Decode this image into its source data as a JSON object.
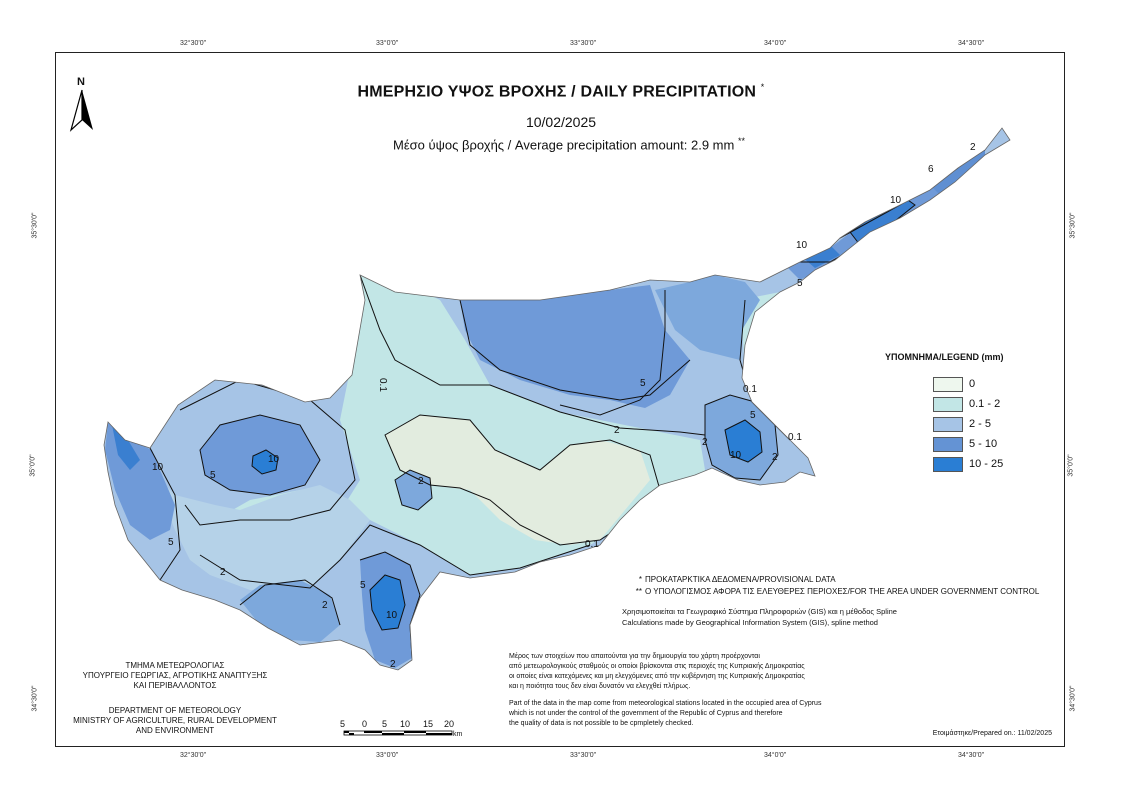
{
  "title": "ΗΜΕΡΗΣΙΟ ΥΨΟΣ ΒΡΟΧΗΣ / DAILY PRECIPITATION",
  "title_mark": "*",
  "date": "10/02/2025",
  "average_text": "Μέσο ύψος βροχής / Average precipitation amount: 2.9 mm",
  "average_mark": "**",
  "north_label": "N",
  "longitude_ticks": [
    "32°30'0\"",
    "33°0'0\"",
    "33°30'0\"",
    "34°0'0\"",
    "34°30'0\""
  ],
  "latitude_ticks": [
    "35°30'0\"",
    "35°0'0\"",
    "34°30'0\""
  ],
  "legend": {
    "title": "ΥΠΟΜΝΗΜΑ/LEGEND (mm)",
    "items": [
      {
        "label": "0",
        "color": "#eef7ee"
      },
      {
        "label": "0.1 - 2",
        "color": "#c2e6e6"
      },
      {
        "label": "2 - 5",
        "color": "#a6c4e6"
      },
      {
        "label": "5 - 10",
        "color": "#6493d4"
      },
      {
        "label": "10 - 25",
        "color": "#2a7ed4"
      }
    ]
  },
  "contour_labels": [
    "0.1",
    "2",
    "5",
    "10",
    "6",
    "10",
    "5",
    "2",
    "0.1",
    "2",
    "5",
    "10",
    "2",
    "10",
    "5",
    "2",
    "10",
    "5",
    "2",
    "0.1",
    "2",
    "5",
    "10",
    "2",
    "0.1"
  ],
  "notes": [
    {
      "mark": "*",
      "text": "ΠΡΟΚΑΤΑΡΚΤΙΚΑ ΔΕΔΟΜΕΝΑ/PROVISIONAL DATA"
    },
    {
      "mark": "**",
      "text": "Ο ΥΠΟΛΟΓΙΣΜΟΣ ΑΦΟΡΑ ΤΙΣ ΕΛΕΥΘΕΡΕΣ ΠΕΡΙΟΧΕΣ/FOR THE AREA UNDER GOVERNMENT CONTROL"
    }
  ],
  "gis_lines": [
    "Χρησιμοποιείται τα Γεωγραφικό Σύστημα Πληροφοριών (GIS) και η μέθοδος Spline",
    "Calculations made by Geographical Information System (GIS), spline method"
  ],
  "greek_paragraph": [
    "Μέρος των στοιχείων που απαιτούνται για την δημιουργία του χάρτη προέρχονται",
    "από μετεωρολογικούς σταθμούς οι οποίοι βρίσκονται στις περιοχές της Κυπριακής Δημοκρατίας",
    "οι οποίες είναι κατεχόμενες και μη ελεγχόμενες από την κυβέρνηση της Κυπριακής Δημοκρατίας",
    "και η ποιότητα τους δεν είναι δυνατόν να ελεγχθεί πλήρως."
  ],
  "english_paragraph": [
    "Part of the data in the map come from meteorological stations located in the occupied area of Cyprus",
    "which is not under the control of the government of the Republic of Cyprus and therefore",
    "the quality of data is not possible to be cpmpletely checked."
  ],
  "dept_greek": [
    "ΤΜΗΜΑ ΜΕΤΕΩΡΟΛΟΓΙΑΣ",
    "ΥΠΟΥΡΓΕΙΟ ΓΕΩΡΓΙΑΣ, ΑΓΡΟΤΙΚΗΣ ΑΝΑΠΤΥΞΗΣ",
    "ΚΑΙ ΠΕΡΙΒΑΛΛΟΝΤΟΣ"
  ],
  "dept_english": [
    "DEPARTMENT OF METEOROLOGY",
    "MINISTRY OF AGRICULTURE, RURAL DEVELOPMENT",
    "AND ENVIRONMENT"
  ],
  "scale": {
    "labels": [
      "5",
      "0",
      "5",
      "10",
      "15",
      "20"
    ],
    "unit": "km"
  },
  "prepared": "Ετοιμάστηκε/Prepared on.: 11/02/2025"
}
